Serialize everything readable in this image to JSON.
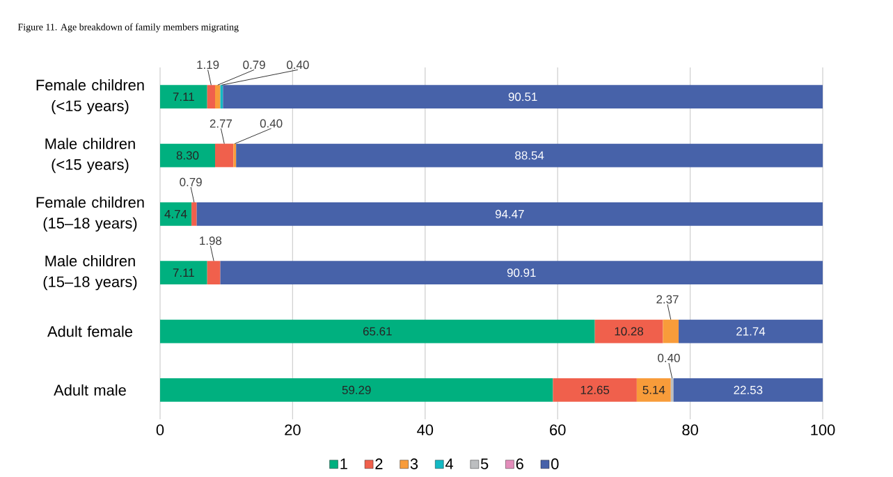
{
  "chart_data": {
    "type": "bar",
    "orientation": "horizontal",
    "stacked": true,
    "title": "Figure 11. Age breakdown of family members migrating",
    "categories": [
      "Female children (<15 years)",
      "Male children (<15 years)",
      "Female children (15–18 years)",
      "Male children (15–18 years)",
      "Adult female",
      "Adult male"
    ],
    "series": [
      {
        "name": "1",
        "color": "#00b07f",
        "values": [
          7.11,
          8.3,
          4.74,
          7.11,
          65.61,
          59.29
        ],
        "value_labels": [
          "7.11",
          "8.30",
          "4.74",
          "7.11",
          "65.61",
          "59.29"
        ]
      },
      {
        "name": "2",
        "color": "#f0604c",
        "values": [
          1.19,
          2.77,
          0.79,
          1.98,
          10.28,
          12.65
        ],
        "value_labels": [
          "1.19",
          "2.77",
          "0.79",
          "1.98",
          "10.28",
          "12.65"
        ]
      },
      {
        "name": "3",
        "color": "#f89c3a",
        "values": [
          0.79,
          0.4,
          null,
          null,
          2.37,
          5.14
        ],
        "value_labels": [
          "0.79",
          "0.40",
          null,
          null,
          "2.37",
          "5.14"
        ]
      },
      {
        "name": "4",
        "color": "#13b9c4",
        "values": [
          0.4,
          null,
          null,
          null,
          null,
          null
        ],
        "value_labels": [
          "0.40",
          null,
          null,
          null,
          null,
          null
        ]
      },
      {
        "name": "5",
        "color": "#bcbec0",
        "values": [
          null,
          null,
          null,
          null,
          null,
          0.4
        ],
        "value_labels": [
          null,
          null,
          null,
          null,
          null,
          "0.40"
        ]
      },
      {
        "name": "6",
        "color": "#e38dbb",
        "values": [
          null,
          null,
          null,
          null,
          null,
          null
        ]
      },
      {
        "name": "0",
        "color": "#4762a9",
        "values": [
          90.51,
          88.54,
          94.47,
          90.91,
          21.74,
          22.53
        ],
        "value_labels": [
          "90.51",
          "88.54",
          "94.47",
          "90.91",
          "21.74",
          "22.53"
        ]
      }
    ],
    "xlim": [
      0,
      100
    ],
    "xticks": [
      0,
      20,
      40,
      60,
      80,
      100
    ],
    "grid": "x",
    "legend": "bottom"
  }
}
